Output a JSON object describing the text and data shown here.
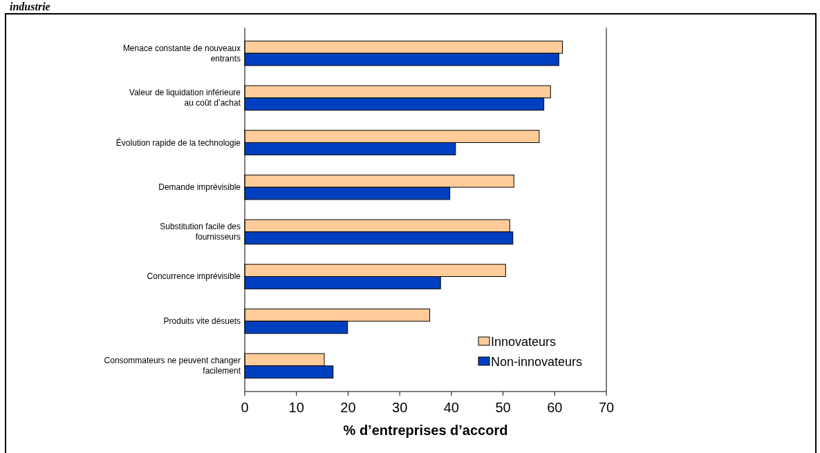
{
  "chart_data": {
    "type": "bar",
    "orientation": "horizontal",
    "title": "industrie",
    "xlabel": "% d’entreprises d’accord",
    "categories": [
      "Menace constante de nouveaux entrants",
      "Valeur de liquidation inférieure au coût d’achat",
      "Évolution rapide de la technologie",
      "Demande imprévisible",
      "Substitution facile des fournisseurs",
      "Concurrence imprévisible",
      "Produits vite désuets",
      "Consommateurs ne peuvent changer facilement"
    ],
    "series": [
      {
        "name": "Innovateurs",
        "color": "#ffcc99",
        "values": [
          61.5,
          59.2,
          57.0,
          52.1,
          51.3,
          50.5,
          35.8,
          15.4
        ]
      },
      {
        "name": "Non-innovateurs",
        "color": "#0040c0",
        "values": [
          60.8,
          57.9,
          40.8,
          39.7,
          51.9,
          37.9,
          19.9,
          17.1
        ]
      }
    ],
    "xlim": [
      0,
      70
    ],
    "xticks": [
      0,
      10,
      20,
      30,
      40,
      50,
      60,
      70
    ],
    "grid": false,
    "legend": "bottom right"
  }
}
